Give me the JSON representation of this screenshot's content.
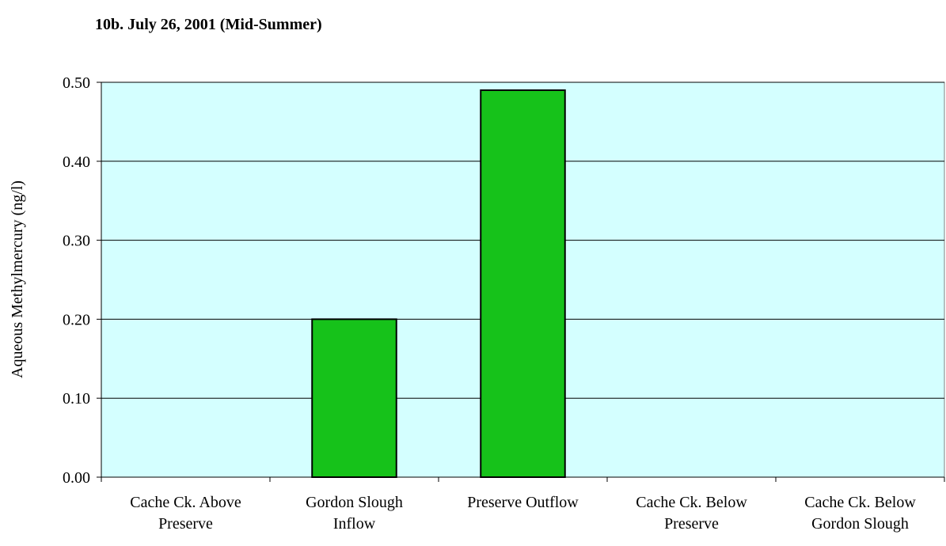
{
  "chart_data": {
    "type": "bar",
    "title": "10b.  July 26, 2001 (Mid-Summer)",
    "y_label": "Aqueous Methylmercury (ng/l)",
    "categories": [
      [
        "Cache Ck. Above",
        "Preserve"
      ],
      [
        "Gordon Slough",
        "Inflow"
      ],
      [
        "Preserve Outflow"
      ],
      [
        "Cache Ck. Below",
        "Preserve"
      ],
      [
        "Cache Ck. Below",
        "Gordon Slough"
      ]
    ],
    "values": [
      null,
      0.2,
      0.49,
      null,
      null
    ],
    "color": "#16c21a",
    "background": "#d4ffff",
    "ylim": [
      0,
      0.5
    ],
    "yticks": [
      {
        "value": 0,
        "label": "0.00"
      },
      {
        "value": 0.1,
        "label": "0.10"
      },
      {
        "value": 0.2,
        "label": "0.20"
      },
      {
        "value": 0.3,
        "label": "0.30"
      },
      {
        "value": 0.4,
        "label": "0.40"
      },
      {
        "value": 0.5,
        "label": "0.50"
      }
    ],
    "grid": true
  }
}
